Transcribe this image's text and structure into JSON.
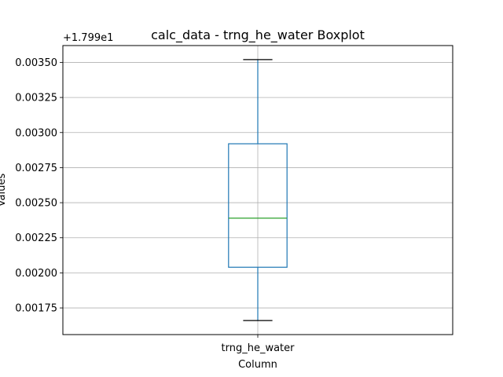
{
  "chart_data": {
    "type": "boxplot",
    "title": "calc_data - trng_he_water Boxplot",
    "xlabel": "Column",
    "ylabel": "Values",
    "y_offset_label": "+1.799e1",
    "y_offset": 17.99,
    "ylim": [
      0.00156,
      0.00362
    ],
    "y_ticks": [
      0.00175,
      0.002,
      0.00225,
      0.0025,
      0.00275,
      0.003,
      0.00325,
      0.0035
    ],
    "y_tick_labels": [
      "0.00175",
      "0.00200",
      "0.00225",
      "0.00250",
      "0.00275",
      "0.00300",
      "0.00325",
      "0.00350"
    ],
    "grid": true,
    "categories": [
      "trng_he_water"
    ],
    "boxes": [
      {
        "name": "trng_he_water",
        "whisker_low": 0.00166,
        "q1": 0.00204,
        "median": 0.00239,
        "q3": 0.00292,
        "whisker_high": 0.00352
      }
    ],
    "colors": {
      "box": "#1f77b4",
      "median": "#2ca02c",
      "cap": "#000000",
      "grid": "#b0b0b0"
    }
  }
}
